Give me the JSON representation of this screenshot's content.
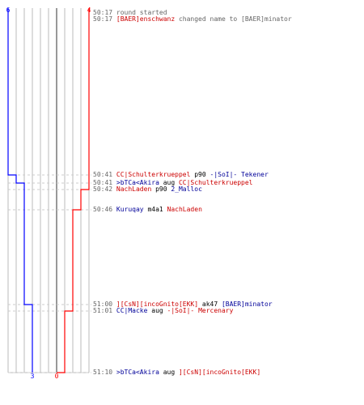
{
  "colors": {
    "blue": "#0000ff",
    "red": "#ff0000",
    "grid": "#bbbbbb",
    "center": "#555555",
    "dash": "#cccccc",
    "team_blue_text": "#000099",
    "team_red_text": "#cc0000",
    "time_text": "#666666",
    "neutral_text": "#666666"
  },
  "counts": {
    "blue_start": "6",
    "red_start": "4",
    "blue_end": "3",
    "red_end": "0"
  },
  "chart_data": {
    "type": "line",
    "series": [
      {
        "team": "blue",
        "points": [
          [
            "50:17",
            6
          ],
          [
            "50:41",
            5
          ],
          [
            "50:41",
            4
          ],
          [
            "51:00",
            3
          ],
          [
            "51:10",
            3
          ]
        ]
      },
      {
        "team": "red",
        "points": [
          [
            "50:17",
            4
          ],
          [
            "50:41",
            4
          ],
          [
            "50:42",
            3
          ],
          [
            "50:46",
            2
          ],
          [
            "51:01",
            1
          ],
          [
            "51:00",
            0
          ],
          [
            "51:10",
            0
          ]
        ]
      }
    ]
  },
  "events": [
    {
      "time": "50:17",
      "parts": [
        {
          "text": "round started",
          "team": "neutral"
        }
      ]
    },
    {
      "time": "50:17",
      "parts": [
        {
          "text": "[BAER]enschwanz",
          "team": "red"
        },
        {
          "text": " changed name to [BAER]minator",
          "team": "neutral"
        }
      ]
    },
    {
      "time": "50:41",
      "parts": [
        {
          "text": "CC|Schulterkrueppel",
          "team": "red"
        },
        {
          "text": " p90 ",
          "team": "black"
        },
        {
          "text": "-|SoI|- Tekener",
          "team": "blue"
        }
      ]
    },
    {
      "time": "50:41",
      "parts": [
        {
          "text": ">bTCa<Akira",
          "team": "blue"
        },
        {
          "text": " aug ",
          "team": "black"
        },
        {
          "text": "CC|Schulterkrueppel",
          "team": "red"
        }
      ]
    },
    {
      "time": "50:42",
      "parts": [
        {
          "text": "NachLaden",
          "team": "red"
        },
        {
          "text": " p90 ",
          "team": "black"
        },
        {
          "text": "2_Malloc",
          "team": "blue"
        }
      ]
    },
    {
      "time": "50:46",
      "parts": [
        {
          "text": "Kuruqay",
          "team": "blue"
        },
        {
          "text": " m4a1 ",
          "team": "black"
        },
        {
          "text": "NachLaden",
          "team": "red"
        }
      ]
    },
    {
      "time": "51:00",
      "parts": [
        {
          "text": "][CsN][incoGnito[EKK]",
          "team": "red"
        },
        {
          "text": " ak47 ",
          "team": "black"
        },
        {
          "text": "[BAER]minator",
          "team": "blue"
        }
      ]
    },
    {
      "time": "51:01",
      "parts": [
        {
          "text": "CC|Macke",
          "team": "blue"
        },
        {
          "text": " aug ",
          "team": "black"
        },
        {
          "text": "-|SoI|- Mercenary",
          "team": "red"
        }
      ]
    },
    {
      "time": "51:10",
      "parts": [
        {
          "text": ">bTCa<Akira",
          "team": "blue"
        },
        {
          "text": " aug ",
          "team": "black"
        },
        {
          "text": "][CsN][incoGnito[EKK]",
          "team": "red"
        }
      ]
    }
  ]
}
